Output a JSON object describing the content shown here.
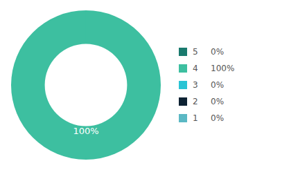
{
  "chart_data": {
    "type": "donut",
    "categories": [
      "5",
      "4",
      "3",
      "2",
      "1"
    ],
    "values": [
      1e-05,
      100,
      1e-05,
      1e-05,
      1e-05
    ],
    "value_labels": [
      "0%",
      "100%",
      "0%",
      "0%",
      "0%"
    ],
    "colors": [
      "#1a7a6e",
      "#3dbfa0",
      "#29c4d4",
      "#0d2233",
      "#5bb8c4"
    ],
    "annotations": [
      {
        "text": "100%",
        "color": "#ffffff"
      }
    ],
    "legend": "right"
  }
}
